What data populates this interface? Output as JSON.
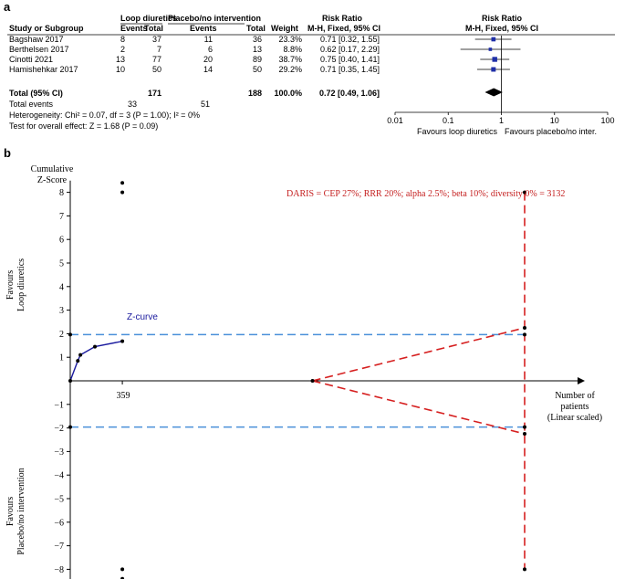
{
  "panel_a": {
    "letter": "a",
    "header": {
      "group1": "Loop diuretics",
      "group2": "Placebo/no intervention",
      "rr_text": "Risk Ratio",
      "rr_plot": "Risk Ratio",
      "study": "Study or Subgroup",
      "events1": "Events",
      "total1": "Total",
      "events2": "Events",
      "total2": "Total",
      "weight": "Weight",
      "method_text": "M-H, Fixed, 95% CI",
      "method_plot": "M-H, Fixed, 95% CI"
    },
    "total_row": {
      "label": "Total (95% CI)",
      "total1": "171",
      "total2": "188",
      "weight": "100.0%",
      "ci": "0.72 [0.49, 1.06]"
    },
    "total_events": {
      "label": "Total events",
      "events1": "33",
      "events2": "51"
    },
    "heterogeneity": "Heterogeneity: Chi² = 0.07, df = 3 (P = 1.00); I² = 0%",
    "overall_effect": "Test for overall effect: Z = 1.68 (P = 0.09)",
    "favours_left": "Favours loop diuretics",
    "favours_right": "Favours placebo/no inter."
  },
  "panel_b": {
    "letter": "b",
    "ylabel_top": [
      "Cumulative",
      "Z-Score"
    ],
    "favours_upper": [
      "Favours",
      "Loop diuretics"
    ],
    "favours_lower": [
      "Favours",
      "Placebo/no intervention"
    ],
    "xlabel": [
      "Number of",
      "patients",
      "(Linear scaled)"
    ],
    "daris_text": "DARIS = CEP 27%; RRR 20%; alpha 2.5%; beta 10%; diversity 0% = 3132",
    "zcurve_label": "Z-curve",
    "tick_359": "359"
  },
  "chart_data": [
    {
      "type": "forest",
      "scale": "log",
      "xlim": [
        0.01,
        100
      ],
      "ticks": [
        0.01,
        0.1,
        1,
        10,
        100
      ],
      "tick_labels": [
        "0.01",
        "0.1",
        "1",
        "10",
        "100"
      ],
      "studies": [
        {
          "name": "Bagshaw 2017",
          "events1": 8,
          "total1": 37,
          "events2": 11,
          "total2": 36,
          "weight": "23.3%",
          "ci_text": "0.71 [0.32, 1.55]",
          "rr": 0.71,
          "lo": 0.32,
          "hi": 1.55
        },
        {
          "name": "Berthelsen 2017",
          "events1": 2,
          "total1": 7,
          "events2": 6,
          "total2": 13,
          "weight": "8.8%",
          "ci_text": "0.62 [0.17, 2.29]",
          "rr": 0.62,
          "lo": 0.17,
          "hi": 2.29
        },
        {
          "name": "Cinotti 2021",
          "events1": 13,
          "total1": 77,
          "events2": 20,
          "total2": 89,
          "weight": "38.7%",
          "ci_text": "0.75 [0.40, 1.41]",
          "rr": 0.75,
          "lo": 0.4,
          "hi": 1.41
        },
        {
          "name": "Hamishehkar 2017",
          "events1": 10,
          "total1": 50,
          "events2": 14,
          "total2": 50,
          "weight": "29.2%",
          "ci_text": "0.71 [0.35, 1.45]",
          "rr": 0.71,
          "lo": 0.35,
          "hi": 1.45
        }
      ],
      "pooled": {
        "rr": 0.72,
        "lo": 0.49,
        "hi": 1.06
      },
      "colors": {
        "marker": "#1f2fa8",
        "diamond": "#000000"
      }
    },
    {
      "type": "line",
      "ylim": [
        -8.5,
        8.5
      ],
      "yticks": [
        8,
        7,
        6,
        5,
        4,
        3,
        2,
        1,
        -1,
        -2,
        -3,
        -4,
        -5,
        -6,
        -7,
        -8
      ],
      "ytick_labels": [
        "8",
        "7",
        "6",
        "5",
        "4",
        "3",
        "2",
        "1",
        "−1",
        "−2",
        "−3",
        "−4",
        "−5",
        "−6",
        "−7",
        "−8"
      ],
      "xlim": [
        0,
        3600
      ],
      "z_curve": {
        "x": [
          0,
          52,
          70,
          170,
          359
        ],
        "y": [
          0,
          0.85,
          1.1,
          1.45,
          1.68
        ]
      },
      "boundaries": {
        "upper": 1.96,
        "lower": -1.96
      },
      "required_information_size": 3132,
      "monitoring_upper": {
        "x": [
          1670,
          3132
        ],
        "y": [
          0,
          2.25
        ]
      },
      "monitoring_lower": {
        "x": [
          1670,
          3132
        ],
        "y": [
          0,
          -2.25
        ]
      },
      "futility_markers": {
        "x": 359,
        "y": [
          8.4,
          8.0,
          -8.0,
          -8.4
        ]
      },
      "ris_markers": {
        "x": 3132,
        "y": [
          8,
          2.25,
          1.96,
          -1.96,
          -2.25,
          -8
        ]
      },
      "colors": {
        "zcurve": "#1a1a9e",
        "boundary": "#4a90d9",
        "monitoring": "#d62020",
        "daris": "#c41e1e"
      }
    }
  ]
}
